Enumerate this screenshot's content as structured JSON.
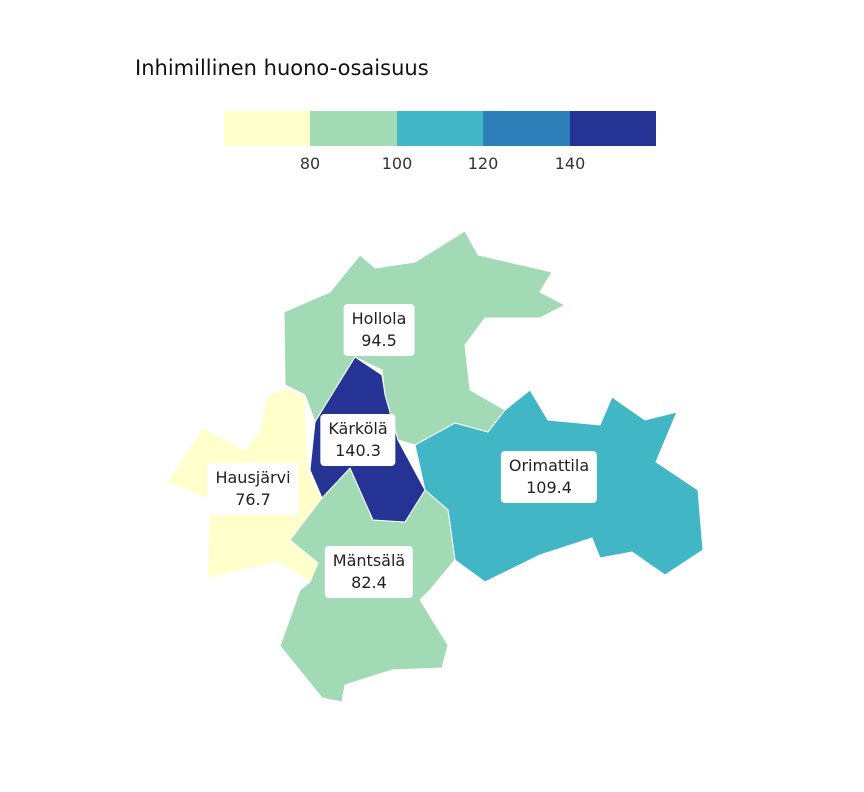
{
  "title": "Inhimillinen huono-osaisuus",
  "legend": {
    "colors": [
      "#ffffcc",
      "#a1dab4",
      "#41b6c4",
      "#2c7fb8",
      "#253494"
    ],
    "ticks": [
      "80",
      "100",
      "120",
      "140"
    ]
  },
  "regions": [
    {
      "name": "Hollola",
      "value": "94.5",
      "color": "#a1dab4"
    },
    {
      "name": "Kärkölä",
      "value": "140.3",
      "color": "#253494"
    },
    {
      "name": "Hausjärvi",
      "value": "76.7",
      "color": "#ffffcc"
    },
    {
      "name": "Orimattila",
      "value": "109.4",
      "color": "#41b6c4"
    },
    {
      "name": "Mäntsälä",
      "value": "82.4",
      "color": "#a1dab4"
    }
  ]
}
